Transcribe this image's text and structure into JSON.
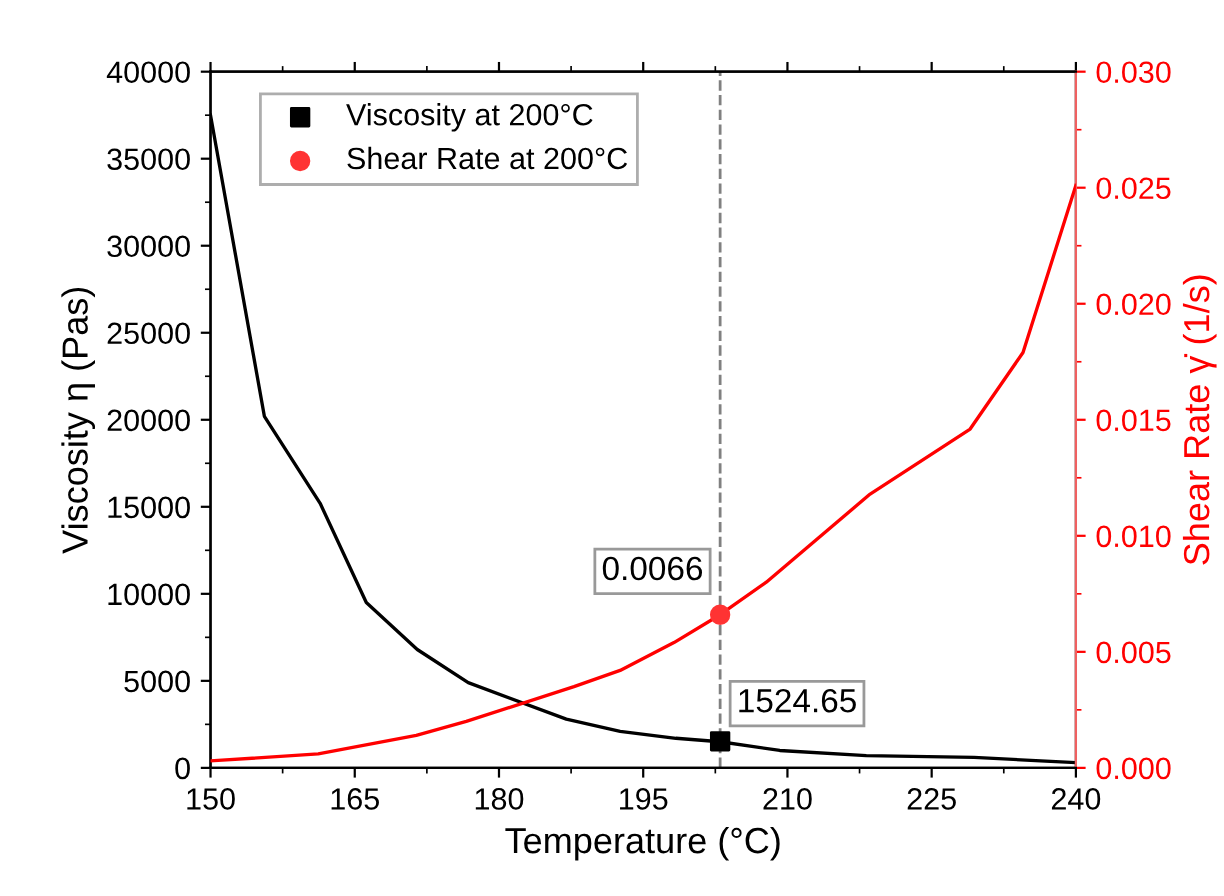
{
  "chart_data": {
    "type": "line",
    "xlabel": "Temperature (°C)",
    "ylabel": "Viscosity η (Pas)",
    "y2label": "Shear Rate γ̇ (1/s)",
    "xlim": [
      150,
      240
    ],
    "xticks": [
      150,
      165,
      180,
      195,
      210,
      225,
      240
    ],
    "ylim": [
      0,
      40000
    ],
    "yticks": [
      0,
      5000,
      10000,
      15000,
      20000,
      25000,
      30000,
      35000,
      40000
    ],
    "y2lim": [
      0,
      0.03
    ],
    "y2ticks": [
      {
        "value": 0,
        "label": "0.000"
      },
      {
        "value": 0.005,
        "label": "0.005"
      },
      {
        "value": 0.01,
        "label": "0.010"
      },
      {
        "value": 0.015,
        "label": "0.015"
      },
      {
        "value": 0.02,
        "label": "0.020"
      },
      {
        "value": 0.025,
        "label": "0.025"
      },
      {
        "value": 0.03,
        "label": "0.030"
      }
    ],
    "grid": false,
    "legend": "top left",
    "ref_lines": [
      {
        "axis": "x",
        "value": 203,
        "label": null,
        "color": "#808080",
        "line_style": "dashed"
      }
    ],
    "series": [
      {
        "color": "#000000",
        "x": [
          150,
          155.6,
          161.4,
          166.2,
          171.5,
          176.8,
          187,
          192.6,
          198.4,
          203,
          209.2,
          218.2,
          229.4,
          240
        ],
        "values": [
          37500,
          20200,
          15200,
          9500,
          6800,
          4900,
          2800,
          2100,
          1700,
          1500,
          1000,
          700,
          600,
          300
        ]
      },
      {
        "type": "line",
        "color": "#ff0000",
        "axis": "y2",
        "x": [
          150,
          161.2,
          171.4,
          176.6,
          187.8,
          192.6,
          198.2,
          203,
          207.8,
          218.6,
          229,
          234.5,
          240
        ],
        "values": [
          0.0003,
          0.0006,
          0.0014,
          0.002,
          0.0035,
          0.0042,
          0.0054,
          0.0066,
          0.008,
          0.0118,
          0.0146,
          0.0179,
          0.0251
        ]
      },
      {
        "type": "scatter",
        "name": "Viscosity at 200°C",
        "color": "#000000",
        "marker": "square",
        "x": [
          203
        ],
        "values": [
          1524.65
        ],
        "value_labels": [
          "1524.65"
        ]
      },
      {
        "type": "scatter",
        "name": "Shear Rate at 200°C",
        "color": "#ff3333",
        "marker": "circle",
        "axis": "y2",
        "x": [
          203
        ],
        "values": [
          0.0066
        ],
        "value_labels": [
          "0.0066"
        ]
      }
    ]
  }
}
